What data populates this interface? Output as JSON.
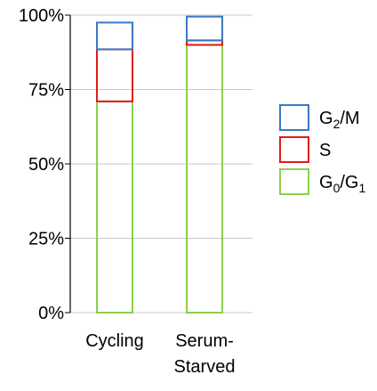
{
  "chart_data": {
    "type": "bar",
    "stacked": true,
    "categories": [
      [
        "Cycling"
      ],
      [
        "Serum-",
        "Starved"
      ]
    ],
    "series": [
      {
        "name": "G0/G1",
        "values": [
          71,
          90
        ],
        "color": "#8ccf4d"
      },
      {
        "name": "S",
        "values": [
          17.5,
          1.5
        ],
        "color": "#e01b1b"
      },
      {
        "name": "G2/M",
        "values": [
          9,
          8
        ],
        "color": "#3b78c2"
      }
    ],
    "ylim": [
      0,
      100
    ],
    "yticks": [
      "0%",
      "25%",
      "50%",
      "75%",
      "100%"
    ],
    "ytick_values": [
      0,
      25,
      50,
      75,
      100
    ],
    "grid": true,
    "legend": {
      "placement": "right",
      "order": [
        2,
        1,
        0
      ],
      "labels": [
        {
          "base": "G",
          "sub": "2",
          "rest": "/M"
        },
        {
          "base": "S",
          "sub": "",
          "rest": ""
        },
        {
          "base": "G",
          "sub": "0",
          "rest": "/G",
          "sub2": "1"
        }
      ]
    }
  }
}
